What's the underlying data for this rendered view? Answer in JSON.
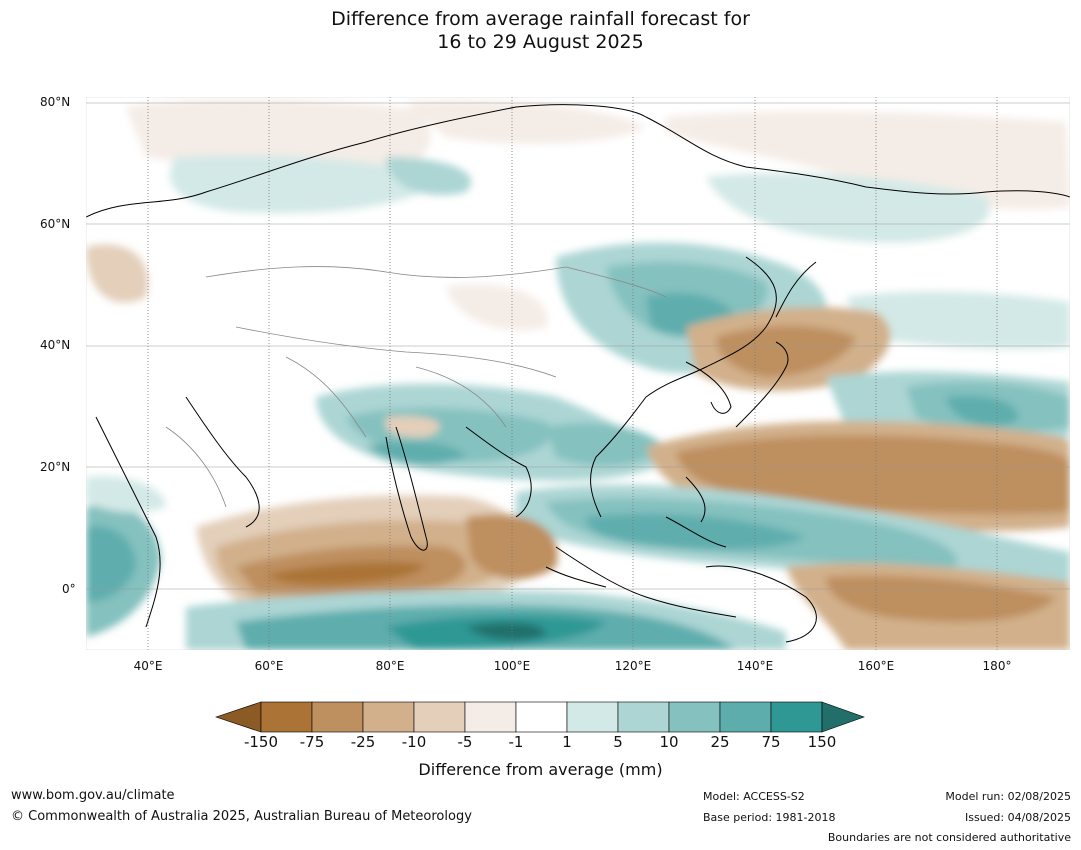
{
  "title": {
    "line1": "Difference from average rainfall forecast for",
    "line2": "16 to 29 August 2025"
  },
  "map": {
    "lat_labels": [
      "80°N",
      "60°N",
      "40°N",
      "20°N",
      "0°"
    ],
    "lon_labels": [
      "40°E",
      "60°E",
      "80°E",
      "100°E",
      "120°E",
      "140°E",
      "160°E",
      "180°"
    ]
  },
  "colorbar": {
    "title": "Difference from average (mm)",
    "tick_labels": [
      "-150",
      "-75",
      "-25",
      "-10",
      "-5",
      "-1",
      "1",
      "5",
      "10",
      "25",
      "75",
      "150"
    ],
    "colors": [
      "#ab7336",
      "#be8f5f",
      "#d1b08b",
      "#e3cfba",
      "#f4ece6",
      "#ffffff",
      "#d3e9e7",
      "#acd5d4",
      "#84c1bf",
      "#5eadad",
      "#2f9894",
      "#216e6b",
      "#8c5a25"
    ]
  },
  "footer": {
    "website": "www.bom.gov.au/climate",
    "copyright": "© Commonwealth of Australia 2025, Australian Bureau of Meteorology",
    "model": "Model: ACCESS-S2",
    "base_period": "Base period: 1981-2018",
    "model_run": "Model run: 02/08/2025",
    "issued": "Issued: 04/08/2025",
    "disclaimer": "Boundaries are not considered authoritative"
  }
}
